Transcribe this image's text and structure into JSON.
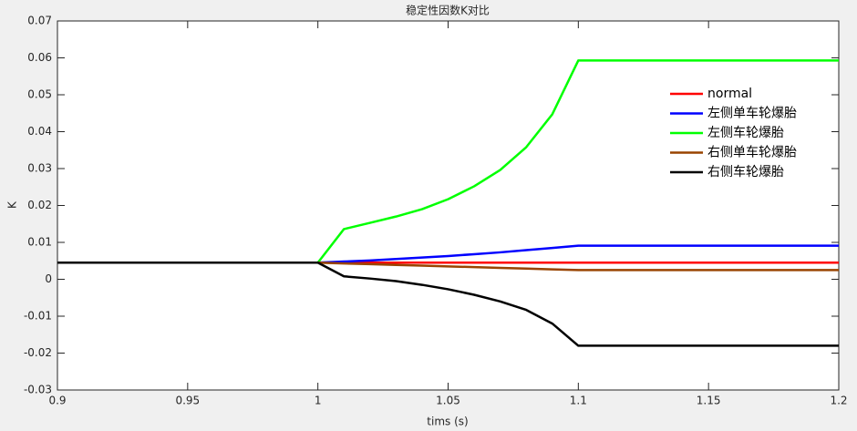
{
  "chart_data": {
    "type": "line",
    "title": "稳定性因数K对比",
    "x_label": "tims (s)",
    "y_label": "K",
    "x": [
      0.9,
      1.0,
      1.01,
      1.02,
      1.03,
      1.04,
      1.05,
      1.06,
      1.07,
      1.08,
      1.09,
      1.1,
      1.2
    ],
    "series": [
      {
        "name": "normal",
        "color": "#ff0000",
        "values": [
          0.0045,
          0.0045,
          0.0045,
          0.0045,
          0.0045,
          0.0045,
          0.0045,
          0.0045,
          0.0045,
          0.0045,
          0.0045,
          0.0045,
          0.0045
        ]
      },
      {
        "name": "左侧单车轮爆胎",
        "color": "#0000ff",
        "values": [
          0.0045,
          0.0045,
          0.0048,
          0.0051,
          0.0055,
          0.0059,
          0.0063,
          0.0068,
          0.0073,
          0.0079,
          0.0085,
          0.0091,
          0.0091
        ]
      },
      {
        "name": "左侧车轮爆胎",
        "color": "#00ff00",
        "values": [
          0.0045,
          0.0045,
          0.0136,
          0.0153,
          0.017,
          0.019,
          0.0217,
          0.0252,
          0.0296,
          0.0358,
          0.0447,
          0.0593,
          0.0593
        ]
      },
      {
        "name": "右侧单车轮爆胎",
        "color": "#994400",
        "values": [
          0.0045,
          0.0045,
          0.0043,
          0.0041,
          0.0039,
          0.0037,
          0.0035,
          0.0033,
          0.0031,
          0.0029,
          0.0027,
          0.0025,
          0.0025
        ]
      },
      {
        "name": "右侧车轮爆胎",
        "color": "#000000",
        "values": [
          0.0045,
          0.0045,
          0.0008,
          0.0002,
          -0.0005,
          -0.0015,
          -0.0027,
          -0.0042,
          -0.006,
          -0.0083,
          -0.012,
          -0.018,
          -0.018
        ]
      }
    ],
    "xlim": [
      0.9,
      1.2
    ],
    "xticks": [
      0.9,
      0.95,
      1,
      1.05,
      1.1,
      1.15,
      1.2
    ],
    "ylim": [
      -0.03,
      0.07
    ],
    "yticks": [
      -0.03,
      -0.02,
      -0.01,
      0,
      0.01,
      0.02,
      0.03,
      0.04,
      0.05,
      0.06,
      0.07
    ],
    "legend": "right",
    "grid": false
  }
}
